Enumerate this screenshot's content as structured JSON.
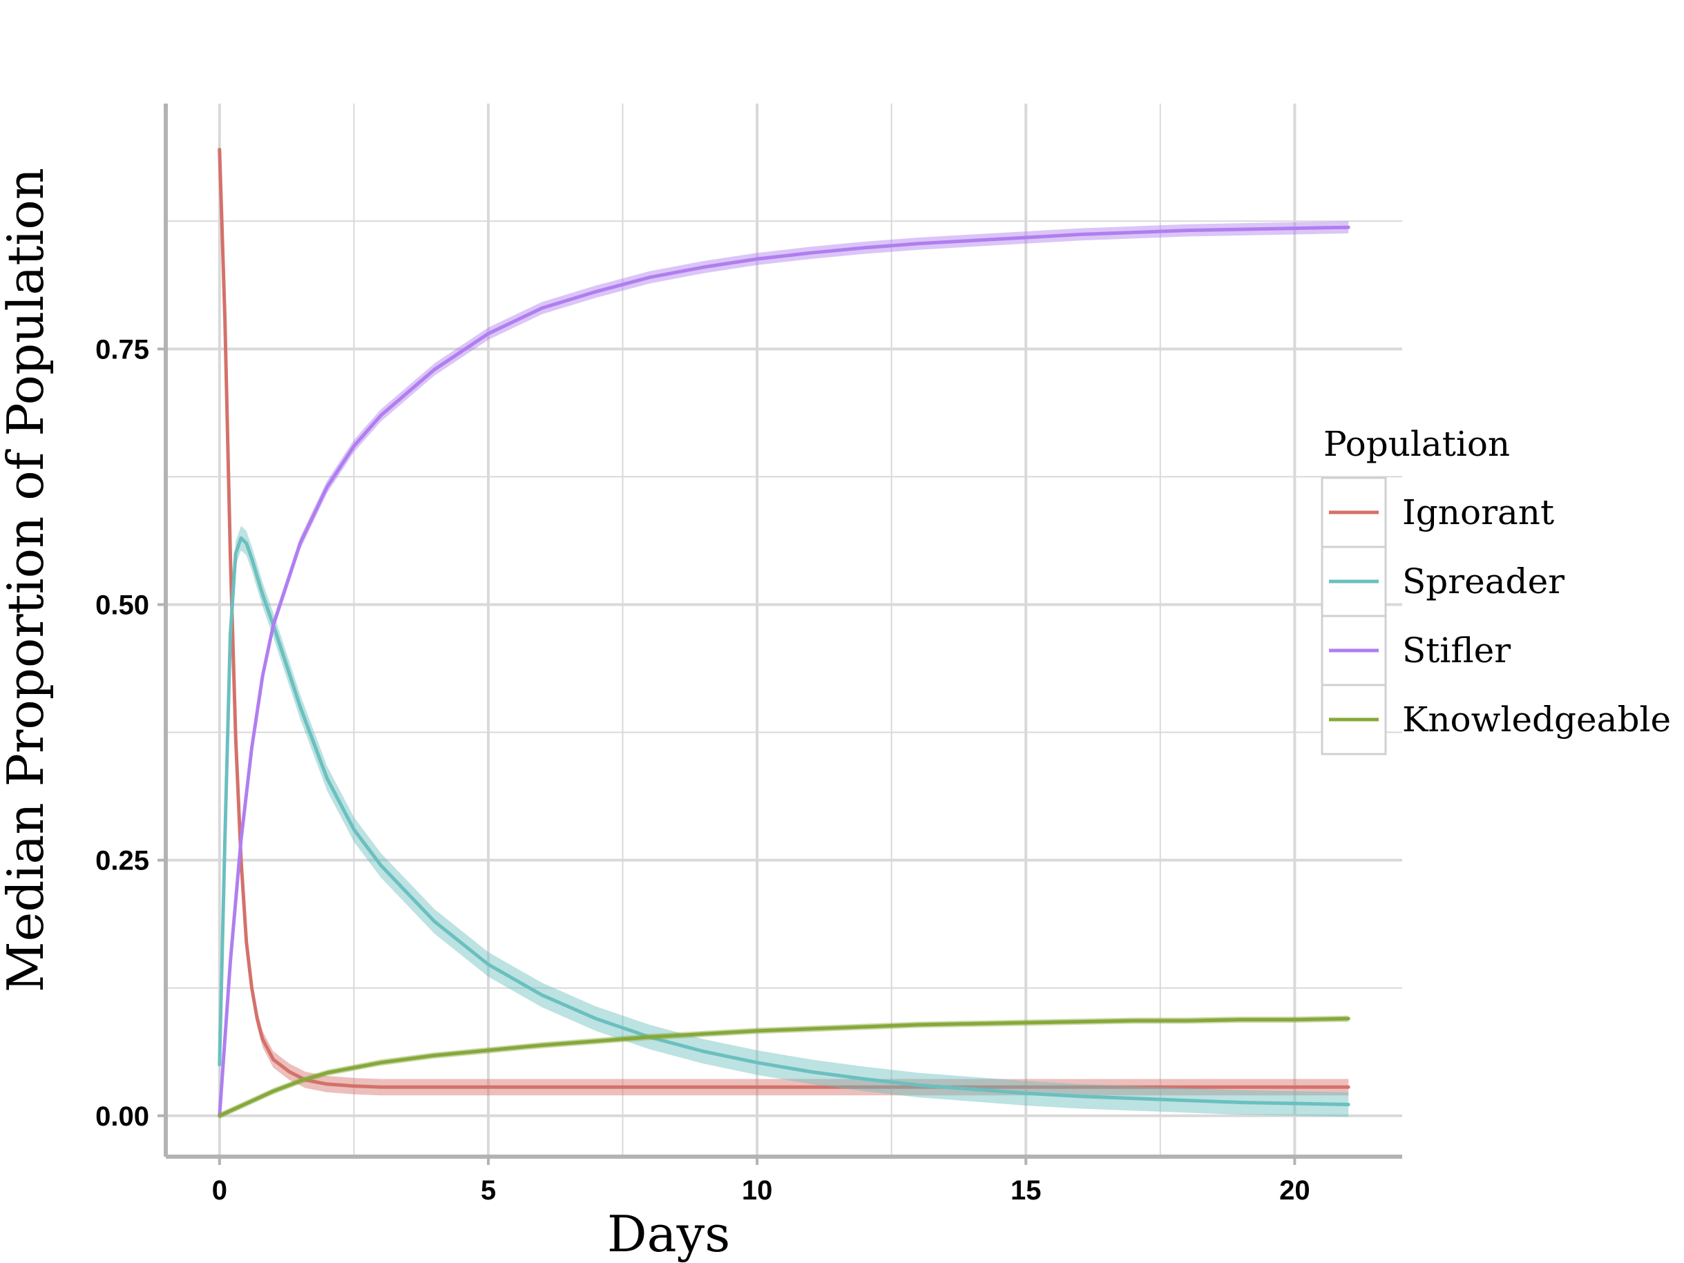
{
  "chart_data": {
    "type": "line",
    "xlabel": "Days",
    "ylabel": "Median Proportion of Population",
    "xlim": [
      -1,
      22
    ],
    "ylim": [
      -0.04,
      0.99
    ],
    "x_ticks": [
      0,
      5,
      10,
      15,
      20
    ],
    "x_tick_labels": [
      "0",
      "5",
      "10",
      "15",
      "20"
    ],
    "y_ticks": [
      0,
      0.25,
      0.5,
      0.75
    ],
    "y_tick_labels": [
      "0.00",
      "0.25",
      "0.50",
      "0.75"
    ],
    "grid": true,
    "legend": {
      "title": "Population",
      "position": "right"
    },
    "series": [
      {
        "name": "Ignorant",
        "color": "#d4716a",
        "band": 0.008,
        "points": [
          [
            0,
            0.945
          ],
          [
            0.1,
            0.78
          ],
          [
            0.2,
            0.55
          ],
          [
            0.3,
            0.37
          ],
          [
            0.4,
            0.25
          ],
          [
            0.5,
            0.17
          ],
          [
            0.6,
            0.125
          ],
          [
            0.7,
            0.095
          ],
          [
            0.8,
            0.075
          ],
          [
            1,
            0.055
          ],
          [
            1.3,
            0.043
          ],
          [
            1.6,
            0.035
          ],
          [
            2,
            0.031
          ],
          [
            2.5,
            0.029
          ],
          [
            3,
            0.028
          ],
          [
            5,
            0.028
          ],
          [
            10,
            0.028
          ],
          [
            15,
            0.028
          ],
          [
            21,
            0.028
          ]
        ]
      },
      {
        "name": "Spreader",
        "color": "#6bbfbf",
        "band": 0.012,
        "points": [
          [
            0,
            0.05
          ],
          [
            0.1,
            0.27
          ],
          [
            0.2,
            0.47
          ],
          [
            0.3,
            0.55
          ],
          [
            0.4,
            0.565
          ],
          [
            0.5,
            0.56
          ],
          [
            0.6,
            0.545
          ],
          [
            0.8,
            0.51
          ],
          [
            1,
            0.48
          ],
          [
            1.5,
            0.4
          ],
          [
            2,
            0.33
          ],
          [
            2.5,
            0.28
          ],
          [
            3,
            0.245
          ],
          [
            4,
            0.19
          ],
          [
            5,
            0.148
          ],
          [
            6,
            0.118
          ],
          [
            7,
            0.095
          ],
          [
            8,
            0.077
          ],
          [
            9,
            0.063
          ],
          [
            10,
            0.052
          ],
          [
            11,
            0.043
          ],
          [
            12,
            0.036
          ],
          [
            13,
            0.03
          ],
          [
            14,
            0.026
          ],
          [
            15,
            0.022
          ],
          [
            16,
            0.019
          ],
          [
            17,
            0.017
          ],
          [
            18,
            0.015
          ],
          [
            19,
            0.013
          ],
          [
            20,
            0.012
          ],
          [
            21,
            0.011
          ]
        ]
      },
      {
        "name": "Stifler",
        "color": "#b07ef0",
        "band": 0.006,
        "points": [
          [
            0,
            0
          ],
          [
            0.2,
            0.15
          ],
          [
            0.4,
            0.27
          ],
          [
            0.6,
            0.36
          ],
          [
            0.8,
            0.43
          ],
          [
            1,
            0.48
          ],
          [
            1.5,
            0.56
          ],
          [
            2,
            0.615
          ],
          [
            2.5,
            0.655
          ],
          [
            3,
            0.685
          ],
          [
            4,
            0.73
          ],
          [
            5,
            0.765
          ],
          [
            6,
            0.79
          ],
          [
            7,
            0.806
          ],
          [
            8,
            0.82
          ],
          [
            9,
            0.83
          ],
          [
            10,
            0.838
          ],
          [
            11,
            0.844
          ],
          [
            12,
            0.849
          ],
          [
            13,
            0.853
          ],
          [
            14,
            0.856
          ],
          [
            15,
            0.859
          ],
          [
            16,
            0.862
          ],
          [
            17,
            0.864
          ],
          [
            18,
            0.866
          ],
          [
            19,
            0.867
          ],
          [
            20,
            0.868
          ],
          [
            21,
            0.869
          ]
        ]
      },
      {
        "name": "Knowledgeable",
        "color": "#86a83a",
        "band": 0.003,
        "points": [
          [
            0,
            0
          ],
          [
            0.5,
            0.012
          ],
          [
            1,
            0.024
          ],
          [
            1.5,
            0.034
          ],
          [
            2,
            0.042
          ],
          [
            3,
            0.052
          ],
          [
            4,
            0.059
          ],
          [
            5,
            0.064
          ],
          [
            6,
            0.069
          ],
          [
            7,
            0.073
          ],
          [
            8,
            0.077
          ],
          [
            9,
            0.08
          ],
          [
            10,
            0.083
          ],
          [
            11,
            0.085
          ],
          [
            12,
            0.087
          ],
          [
            13,
            0.089
          ],
          [
            14,
            0.09
          ],
          [
            15,
            0.091
          ],
          [
            16,
            0.092
          ],
          [
            17,
            0.093
          ],
          [
            18,
            0.093
          ],
          [
            19,
            0.094
          ],
          [
            20,
            0.094
          ],
          [
            21,
            0.095
          ]
        ]
      }
    ]
  }
}
